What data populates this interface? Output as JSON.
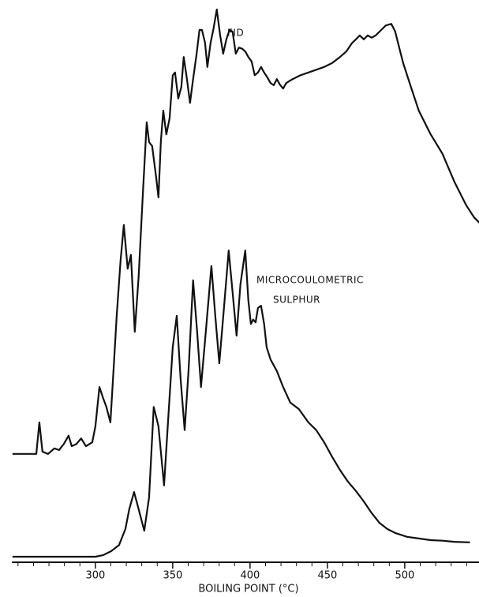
{
  "chart_data": {
    "type": "line",
    "xlabel": "BOILING POINT (°C)",
    "annotations": [
      "FID",
      "MICROCOULOMETRIC",
      "SULPHUR"
    ],
    "xlim": [
      246,
      548
    ],
    "xticks": [
      300,
      350,
      400,
      450,
      500
    ],
    "xminorticks": [
      250,
      260,
      270,
      280,
      290,
      310,
      320,
      330,
      340,
      360,
      370,
      380,
      390,
      410,
      420,
      430,
      440,
      460,
      470,
      480,
      490,
      510,
      520,
      530,
      540
    ],
    "ylim": [
      0,
      100
    ],
    "series": [
      {
        "name": "FID",
        "color": "#111111",
        "x": [
          246.4,
          261.8,
          263.8,
          265.8,
          269.4,
          273.5,
          276.5,
          279.6,
          282.7,
          284.7,
          287.8,
          290.8,
          293.9,
          298,
          300,
          302.6,
          305.1,
          307.1,
          309.7,
          311.7,
          313.8,
          316.3,
          318.4,
          320.9,
          323,
          325.5,
          328,
          330.6,
          333.2,
          334.7,
          336.7,
          339.3,
          340.8,
          342.3,
          343.9,
          345.9,
          348,
          350,
          351.5,
          353.6,
          355.6,
          357.1,
          359.2,
          361.2,
          363.2,
          365.3,
          367.3,
          368.9,
          370.9,
          372.4,
          374.5,
          376.5,
          378.5,
          380.6,
          382.6,
          384.7,
          386.7,
          388.7,
          390.8,
          392.8,
          394.9,
          396.9,
          398.9,
          401,
          403,
          405.1,
          407.1,
          409.1,
          411.2,
          413.2,
          415.3,
          417.3,
          419.3,
          421.4,
          423.4,
          427.5,
          432.6,
          437.7,
          442.8,
          447.9,
          453,
          458.1,
          462.2,
          465.8,
          468.4,
          470.9,
          473.5,
          476,
          478.6,
          481.2,
          483.7,
          487.7,
          491.3,
          493.8,
          496.4,
          499,
          504,
          509.1,
          516.8,
          524.4,
          532,
          539.7,
          544.8,
          548.3
        ],
        "values": [
          19.6,
          19.6,
          25.3,
          20,
          19.6,
          20.6,
          20.3,
          21.4,
          22.9,
          21,
          21.4,
          22.4,
          21,
          21.7,
          24.6,
          31.7,
          29.6,
          28.1,
          25.3,
          34.6,
          44.6,
          54.6,
          61,
          53.1,
          55.6,
          41.7,
          51.7,
          66,
          79.6,
          76,
          75.3,
          69.6,
          66,
          76,
          81.7,
          77.4,
          80.3,
          88.1,
          88.6,
          83.9,
          86,
          91.4,
          87.4,
          83.1,
          87.4,
          91.7,
          96.3,
          96.3,
          94,
          89.6,
          94,
          96.7,
          100,
          95.4,
          92,
          94.6,
          96.3,
          96,
          92,
          93.1,
          92.9,
          92.4,
          91.4,
          90.6,
          88.1,
          88.6,
          89.6,
          88.6,
          87.7,
          86.7,
          86.3,
          87.4,
          86.4,
          85.7,
          86.7,
          87.4,
          88.1,
          88.6,
          89.1,
          89.6,
          90.3,
          91.4,
          92.4,
          93.9,
          94.6,
          95.3,
          94.6,
          95.3,
          94.9,
          95.3,
          96,
          97.1,
          97.4,
          96,
          93.1,
          90.3,
          86,
          81.7,
          77.4,
          73.9,
          68.9,
          64.6,
          62.4,
          61.4
        ]
      },
      {
        "name": "SULPHUR",
        "color": "#111111",
        "x": [
          246.4,
          300,
          305.1,
          310.2,
          315.3,
          319.4,
          321.9,
          325,
          328,
          331.6,
          334.7,
          337.7,
          340.8,
          344.4,
          347.4,
          350,
          352.6,
          355.1,
          357.7,
          360.2,
          363.2,
          365.8,
          368.3,
          371.4,
          375,
          377.5,
          380.1,
          383.1,
          386.2,
          388.7,
          391.3,
          393.8,
          396.9,
          398.9,
          400.5,
          402,
          403.6,
          405.1,
          407.1,
          409.1,
          410.7,
          413.2,
          417.3,
          421.4,
          426,
          431.6,
          437.7,
          442.8,
          447.9,
          453,
          458.1,
          463.2,
          468.4,
          473.5,
          478.6,
          483.7,
          488.8,
          493.8,
          501.5,
          509.1,
          516.8,
          524.4,
          532,
          542.2
        ],
        "values": [
          1,
          1,
          1.3,
          2,
          3.1,
          6,
          9.6,
          12.7,
          9.6,
          5.7,
          11.7,
          28.1,
          24.6,
          13.9,
          27.4,
          38.9,
          44.6,
          33.1,
          23.9,
          34.6,
          51,
          41.7,
          31.7,
          41.7,
          53.6,
          44.6,
          36,
          46,
          56.4,
          48.9,
          41,
          50.3,
          56.4,
          47.4,
          43.1,
          43.9,
          43.4,
          46,
          46.4,
          43.1,
          38.9,
          36.7,
          34.6,
          31.7,
          28.9,
          27.7,
          25.3,
          23.9,
          21.7,
          19.1,
          16.7,
          14.6,
          12.9,
          11,
          8.9,
          7.1,
          6,
          5.3,
          4.6,
          4.3,
          4,
          3.9,
          3.7,
          3.6
        ]
      }
    ]
  }
}
